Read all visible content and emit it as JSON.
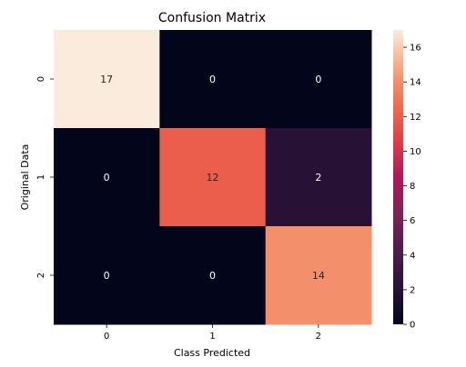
{
  "chart_data": {
    "type": "heatmap",
    "title": "Confusion Matrix",
    "xlabel": "Class Predicted",
    "ylabel": "Original Data",
    "x_categories": [
      "0",
      "1",
      "2"
    ],
    "y_categories": [
      "0",
      "1",
      "2"
    ],
    "values": [
      [
        17,
        0,
        0
      ],
      [
        0,
        12,
        2
      ],
      [
        0,
        0,
        14
      ]
    ],
    "colorbar": {
      "min": 0,
      "max": 17,
      "ticks": [
        "0",
        "2",
        "4",
        "6",
        "8",
        "10",
        "12",
        "14",
        "16"
      ],
      "palette": "rocket"
    },
    "grid": false
  }
}
